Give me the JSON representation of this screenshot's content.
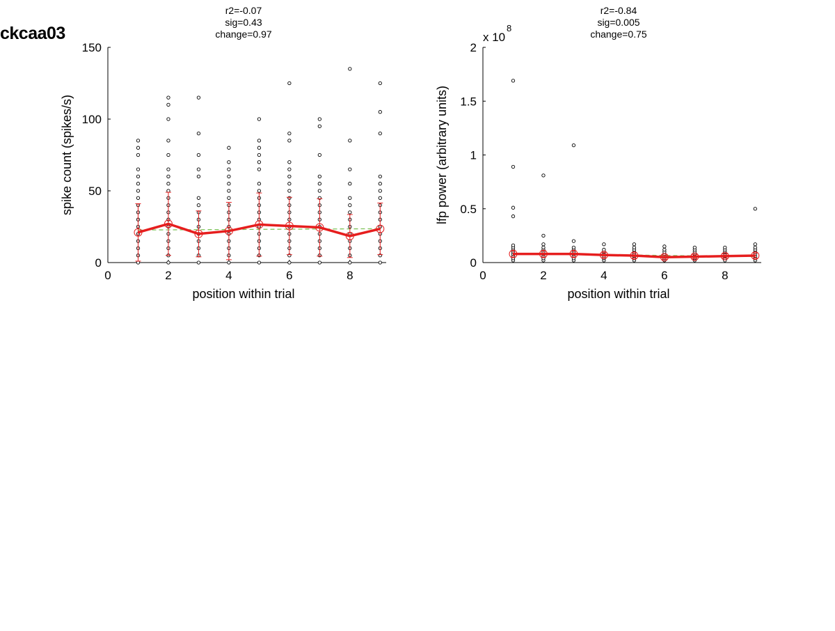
{
  "page": {
    "title": "ckcaa03"
  },
  "chart_data": [
    {
      "type": "scatter",
      "title_lines": [
        "r2=-0.07",
        "sig=0.43",
        "change=0.97"
      ],
      "xlabel": "position within trial",
      "ylabel": "spike count (spikes/s)",
      "exponent_label": "",
      "exponent_power": "",
      "xlim": [
        0,
        9.2
      ],
      "ylim": [
        0,
        150
      ],
      "xticks": [
        0,
        2,
        4,
        6,
        8
      ],
      "yticks": [
        0,
        50,
        100,
        150
      ],
      "ytick_labels": [
        "0",
        "50",
        "100",
        "150"
      ],
      "grid": false,
      "scatter_points": {
        "1": [
          0,
          5,
          10,
          15,
          20,
          25,
          30,
          35,
          40,
          45,
          50,
          55,
          60,
          65,
          75,
          80,
          85
        ],
        "2": [
          0,
          5,
          10,
          15,
          20,
          25,
          30,
          35,
          40,
          45,
          50,
          55,
          60,
          65,
          75,
          85,
          100,
          110,
          115
        ],
        "3": [
          0,
          5,
          10,
          15,
          20,
          25,
          30,
          35,
          40,
          45,
          60,
          65,
          75,
          90,
          115
        ],
        "4": [
          0,
          5,
          10,
          15,
          20,
          25,
          30,
          35,
          40,
          45,
          50,
          55,
          60,
          65,
          70,
          80
        ],
        "5": [
          0,
          5,
          10,
          15,
          20,
          25,
          30,
          35,
          40,
          45,
          50,
          55,
          65,
          70,
          75,
          80,
          85,
          100
        ],
        "6": [
          0,
          5,
          10,
          15,
          20,
          25,
          30,
          35,
          40,
          45,
          50,
          55,
          60,
          65,
          70,
          85,
          90,
          125
        ],
        "7": [
          0,
          5,
          10,
          15,
          20,
          25,
          30,
          35,
          40,
          45,
          50,
          55,
          60,
          75,
          95,
          100
        ],
        "8": [
          0,
          5,
          10,
          15,
          20,
          25,
          30,
          35,
          40,
          45,
          55,
          65,
          85,
          135
        ],
        "9": [
          0,
          5,
          10,
          15,
          20,
          25,
          30,
          35,
          40,
          45,
          50,
          55,
          60,
          90,
          105,
          125
        ]
      },
      "mean_series": {
        "x": [
          1,
          2,
          3,
          4,
          5,
          6,
          7,
          8,
          9
        ],
        "y": [
          21,
          27,
          20,
          22,
          26.5,
          25.5,
          24.5,
          18.5,
          23.5
        ],
        "error": [
          20,
          22,
          16,
          20,
          22,
          20,
          20,
          15,
          18
        ],
        "color": "#e61e1e"
      },
      "fit_line": {
        "x": [
          1,
          9
        ],
        "y": [
          22.7,
          23.6
        ],
        "color": "#7fc25a"
      }
    },
    {
      "type": "scatter",
      "title_lines": [
        "r2=-0.84",
        "sig=0.005",
        "change=0.75"
      ],
      "xlabel": "position within trial",
      "ylabel": "lfp power (arbitrary units)",
      "exponent_label": "x 10",
      "exponent_power": "8",
      "xlim": [
        0,
        9.2
      ],
      "ylim": [
        0,
        2
      ],
      "xticks": [
        0,
        2,
        4,
        6,
        8
      ],
      "yticks": [
        0,
        0.5,
        1,
        1.5,
        2
      ],
      "ytick_labels": [
        "0",
        "0.5",
        "1",
        "1.5",
        "2"
      ],
      "grid": false,
      "scatter_points": {
        "1": [
          0.02,
          0.04,
          0.06,
          0.08,
          0.1,
          0.12,
          0.14,
          0.16,
          0.43,
          0.51,
          0.89,
          1.69
        ],
        "2": [
          0.02,
          0.04,
          0.06,
          0.08,
          0.1,
          0.12,
          0.14,
          0.17,
          0.25,
          0.81
        ],
        "3": [
          0.02,
          0.04,
          0.06,
          0.08,
          0.1,
          0.12,
          0.14,
          0.2,
          1.09
        ],
        "4": [
          0.02,
          0.04,
          0.06,
          0.08,
          0.1,
          0.12,
          0.17
        ],
        "5": [
          0.02,
          0.04,
          0.06,
          0.08,
          0.1,
          0.12,
          0.14,
          0.17
        ],
        "6": [
          0.02,
          0.04,
          0.06,
          0.08,
          0.1,
          0.12,
          0.15
        ],
        "7": [
          0.02,
          0.04,
          0.06,
          0.08,
          0.1,
          0.12,
          0.14
        ],
        "8": [
          0.02,
          0.04,
          0.06,
          0.08,
          0.1,
          0.12,
          0.14
        ],
        "9": [
          0.02,
          0.04,
          0.06,
          0.08,
          0.1,
          0.12,
          0.14,
          0.17,
          0.5
        ]
      },
      "mean_series": {
        "x": [
          1,
          2,
          3,
          4,
          5,
          6,
          7,
          8,
          9
        ],
        "y": [
          0.08,
          0.08,
          0.08,
          0.07,
          0.065,
          0.05,
          0.055,
          0.06,
          0.065
        ],
        "error": [
          0.03,
          0.03,
          0.03,
          0.025,
          0.025,
          0.02,
          0.02,
          0.02,
          0.025
        ],
        "color": "#e61e1e"
      },
      "fit_line": {
        "x": [
          1,
          9
        ],
        "y": [
          0.085,
          0.055
        ],
        "color": "#7fc25a"
      }
    }
  ]
}
